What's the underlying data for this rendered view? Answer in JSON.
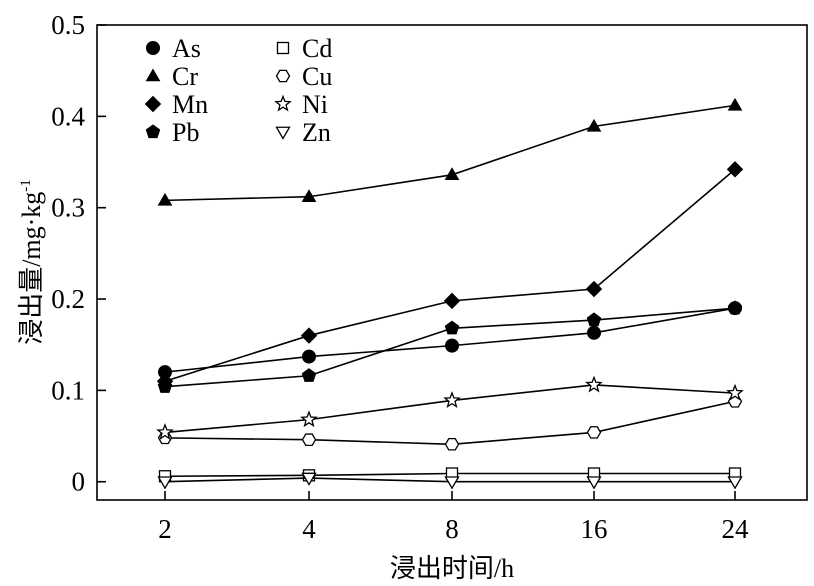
{
  "chart_data": {
    "type": "line",
    "xlabel": "浸出时间/h",
    "ylabel": "浸出量/mg·kg",
    "ylabel_sup": "-1",
    "x_categories": [
      "2",
      "4",
      "8",
      "16",
      "24"
    ],
    "yticks": [
      0,
      0.1,
      0.2,
      0.3,
      0.4,
      0.5
    ],
    "ytick_labels": [
      "0",
      "0.1",
      "0.2",
      "0.3",
      "0.4",
      "0.5"
    ],
    "ylim": [
      -0.02,
      0.5
    ],
    "grid": false,
    "legend_position": "top-left",
    "series": [
      {
        "name": "As",
        "marker": "circle",
        "values": [
          0.12,
          0.137,
          0.149,
          0.163,
          0.19
        ]
      },
      {
        "name": "Cr",
        "marker": "triangle",
        "values": [
          0.308,
          0.312,
          0.336,
          0.389,
          0.412
        ]
      },
      {
        "name": "Mn",
        "marker": "diamond",
        "values": [
          0.11,
          0.16,
          0.198,
          0.211,
          0.342
        ]
      },
      {
        "name": "Pb",
        "marker": "pentagon",
        "values": [
          0.104,
          0.116,
          0.168,
          0.177,
          0.19
        ]
      },
      {
        "name": "Cd",
        "marker": "square-open",
        "values": [
          0.006,
          0.007,
          0.009,
          0.009,
          0.009
        ]
      },
      {
        "name": "Cu",
        "marker": "hexagon-open",
        "values": [
          0.048,
          0.046,
          0.041,
          0.054,
          0.088
        ]
      },
      {
        "name": "Ni",
        "marker": "star-open",
        "values": [
          0.054,
          0.068,
          0.089,
          0.106,
          0.097
        ]
      },
      {
        "name": "Zn",
        "marker": "triangle-down-open",
        "values": [
          0.0,
          0.004,
          0.0,
          0.0,
          0.0
        ]
      }
    ]
  }
}
